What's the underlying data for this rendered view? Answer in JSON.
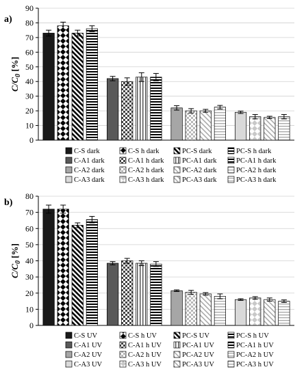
{
  "chart_data": [
    {
      "panel_label": "a)",
      "type": "bar",
      "ylabel": "C/C0 [%]",
      "ylim": [
        0,
        90
      ],
      "yticks": [
        0,
        10,
        20,
        30,
        40,
        50,
        60,
        70,
        80,
        90
      ],
      "grid": true,
      "legend_position": "bottom",
      "series": [
        {
          "name": "C-S dark",
          "value": 73,
          "error": 2.0,
          "pattern": "solid-black"
        },
        {
          "name": "C-S h dark",
          "value": 78,
          "error": 2.5,
          "pattern": "diamonds"
        },
        {
          "name": "PC-S dark",
          "value": 73,
          "error": 2.0,
          "pattern": "diag-stripes"
        },
        {
          "name": "PC-S h dark",
          "value": 76,
          "error": 2.0,
          "pattern": "horiz-stripes"
        },
        {
          "name": "C-A1 dark",
          "value": 42,
          "error": 1.5,
          "pattern": "solid-dark-gray"
        },
        {
          "name": "C-A1 h dark",
          "value": 40,
          "error": 2.5,
          "pattern": "checker"
        },
        {
          "name": "PC-A1 dark",
          "value": 43,
          "error": 3.0,
          "pattern": "vert-stripes"
        },
        {
          "name": "PC-A1 h dark",
          "value": 43,
          "error": 2.5,
          "pattern": "horiz-stripes"
        },
        {
          "name": "C-A2 dark",
          "value": 22,
          "error": 1.5,
          "pattern": "solid-gray"
        },
        {
          "name": "C-A2 h dark",
          "value": 20,
          "error": 1.5,
          "pattern": "light-checker"
        },
        {
          "name": "PC-A2 dark",
          "value": 20,
          "error": 1.0,
          "pattern": "light-diag"
        },
        {
          "name": "PC-A2 h dark",
          "value": 22.5,
          "error": 1.2,
          "pattern": "light-horiz"
        },
        {
          "name": "C-A3 dark",
          "value": 19,
          "error": 0.8,
          "pattern": "solid-light"
        },
        {
          "name": "C-A3 h dark",
          "value": 16,
          "error": 1.5,
          "pattern": "light-diamonds"
        },
        {
          "name": "PC-A3 dark",
          "value": 15.5,
          "error": 0.8,
          "pattern": "light-diag"
        },
        {
          "name": "PC-A3 h dark",
          "value": 16,
          "error": 1.5,
          "pattern": "light-horiz"
        }
      ]
    },
    {
      "panel_label": "b)",
      "type": "bar",
      "ylabel": "C/C0 [%]",
      "ylim": [
        0,
        80
      ],
      "yticks": [
        0,
        10,
        20,
        30,
        40,
        50,
        60,
        70,
        80
      ],
      "grid": true,
      "legend_position": "bottom",
      "series": [
        {
          "name": "C-S UV",
          "value": 72,
          "error": 2.5,
          "pattern": "solid-black"
        },
        {
          "name": "C-S h UV",
          "value": 72,
          "error": 2.5,
          "pattern": "diamonds"
        },
        {
          "name": "PC-S UV",
          "value": 62,
          "error": 1.5,
          "pattern": "diag-stripes"
        },
        {
          "name": "PC-S h UV",
          "value": 65.5,
          "error": 2.0,
          "pattern": "horiz-stripes"
        },
        {
          "name": "C-A1 UV",
          "value": 38.5,
          "error": 1.0,
          "pattern": "solid-dark-gray"
        },
        {
          "name": "C-A1 h UV",
          "value": 40,
          "error": 1.5,
          "pattern": "checker"
        },
        {
          "name": "PC-A1 UV",
          "value": 38.5,
          "error": 1.5,
          "pattern": "vert-stripes"
        },
        {
          "name": "PC-A1 h UV",
          "value": 38,
          "error": 1.5,
          "pattern": "horiz-stripes"
        },
        {
          "name": "C-A2 UV",
          "value": 21.5,
          "error": 0.5,
          "pattern": "solid-gray"
        },
        {
          "name": "C-A2 h UV",
          "value": 20.5,
          "error": 1.2,
          "pattern": "light-checker"
        },
        {
          "name": "PC-A2 UV",
          "value": 19.5,
          "error": 0.8,
          "pattern": "light-diag"
        },
        {
          "name": "PC-A2 h UV",
          "value": 18,
          "error": 1.5,
          "pattern": "light-horiz"
        },
        {
          "name": "C-A3 UV",
          "value": 16,
          "error": 0.5,
          "pattern": "solid-light"
        },
        {
          "name": "C-A3 h UV",
          "value": 17,
          "error": 0.8,
          "pattern": "light-diamonds"
        },
        {
          "name": "PC-A3 UV",
          "value": 16,
          "error": 1.0,
          "pattern": "light-diag"
        },
        {
          "name": "PC-A3 h UV",
          "value": 15,
          "error": 0.8,
          "pattern": "light-horiz"
        }
      ]
    }
  ]
}
